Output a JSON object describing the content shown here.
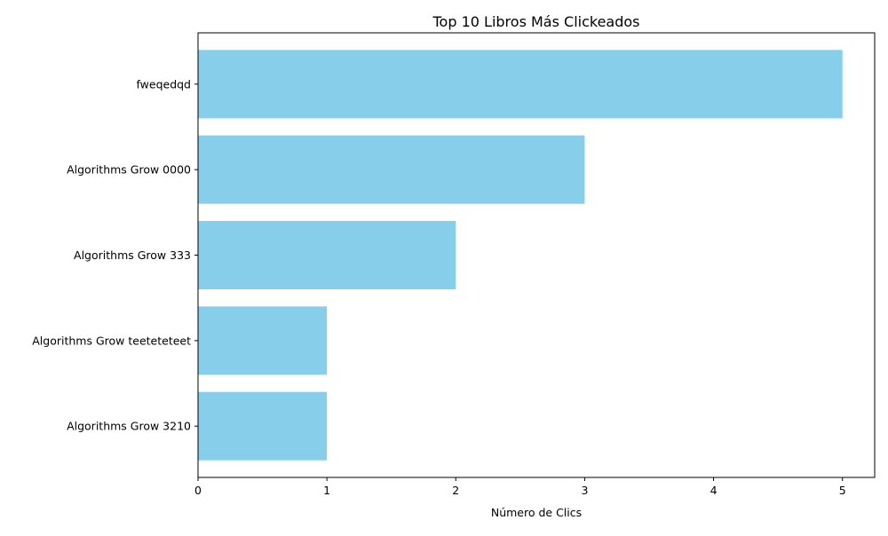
{
  "chart_data": {
    "type": "bar",
    "orientation": "horizontal",
    "title": "Top 10 Libros Más Clickeados",
    "xlabel": "Número de Clics",
    "ylabel": "",
    "categories": [
      "fweqedqd",
      "Algorithms Grow 0000",
      "Algorithms Grow 333",
      "Algorithms Grow teeteteteet",
      "Algorithms Grow 3210"
    ],
    "values": [
      5,
      3,
      2,
      1,
      1
    ],
    "xlim": [
      0,
      5.25
    ],
    "xticks": [
      0,
      1,
      2,
      3,
      4,
      5
    ],
    "grid": false,
    "legend": "none",
    "bar_color": "#87CEEB"
  }
}
